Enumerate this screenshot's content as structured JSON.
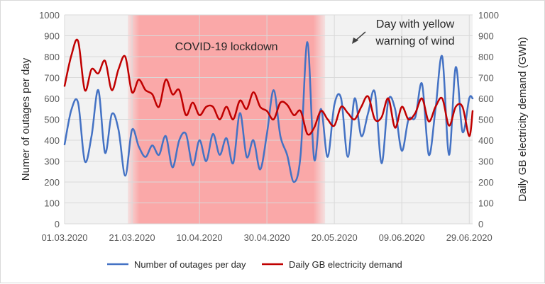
{
  "chart_data": {
    "type": "line",
    "x": [
      "01.03.2020",
      "03.03.2020",
      "05.03.2020",
      "07.03.2020",
      "09.03.2020",
      "11.03.2020",
      "13.03.2020",
      "15.03.2020",
      "17.03.2020",
      "19.03.2020",
      "21.03.2020",
      "23.03.2020",
      "25.03.2020",
      "27.03.2020",
      "29.03.2020",
      "31.03.2020",
      "02.04.2020",
      "04.04.2020",
      "06.04.2020",
      "08.04.2020",
      "10.04.2020",
      "12.04.2020",
      "14.04.2020",
      "16.04.2020",
      "18.04.2020",
      "20.04.2020",
      "22.04.2020",
      "24.04.2020",
      "26.04.2020",
      "28.04.2020",
      "30.04.2020",
      "02.05.2020",
      "04.05.2020",
      "06.05.2020",
      "08.05.2020",
      "10.05.2020",
      "12.05.2020",
      "14.05.2020",
      "16.05.2020",
      "18.05.2020",
      "20.05.2020",
      "22.05.2020",
      "24.05.2020",
      "26.05.2020",
      "28.05.2020",
      "30.05.2020",
      "01.06.2020",
      "03.06.2020",
      "05.06.2020",
      "07.06.2020",
      "09.06.2020",
      "11.06.2020",
      "13.06.2020",
      "15.06.2020",
      "17.06.2020",
      "19.06.2020",
      "21.06.2020",
      "23.06.2020",
      "25.06.2020",
      "27.06.2020",
      "29.06.2020",
      "30.06.2020"
    ],
    "series": [
      {
        "name": "Number of outages per day",
        "color": "#4472c4",
        "axis": "left",
        "values": [
          380,
          545,
          580,
          300,
          420,
          640,
          340,
          525,
          450,
          230,
          450,
          370,
          320,
          375,
          330,
          420,
          270,
          400,
          430,
          280,
          400,
          300,
          430,
          330,
          410,
          290,
          530,
          320,
          400,
          260,
          430,
          640,
          420,
          330,
          200,
          330,
          870,
          310,
          550,
          320,
          570,
          600,
          320,
          600,
          420,
          530,
          630,
          290,
          590,
          550,
          350,
          500,
          510,
          670,
          330,
          550,
          800,
          330,
          750,
          440,
          600,
          600
        ]
      },
      {
        "name": "Daily GB electricity demand",
        "color": "#c00000",
        "axis": "right",
        "values": [
          660,
          805,
          875,
          640,
          740,
          720,
          780,
          640,
          740,
          800,
          630,
          690,
          640,
          620,
          560,
          690,
          620,
          640,
          520,
          580,
          520,
          560,
          560,
          500,
          560,
          500,
          590,
          550,
          630,
          560,
          540,
          500,
          580,
          570,
          520,
          540,
          430,
          460,
          540,
          500,
          470,
          560,
          530,
          500,
          560,
          610,
          500,
          510,
          600,
          460,
          560,
          500,
          530,
          600,
          490,
          560,
          600,
          470,
          560,
          560,
          420,
          540
        ]
      }
    ],
    "y_left": {
      "label": "Numer of outages per day",
      "range": [
        0,
        1000
      ],
      "ticks": [
        "0",
        "100",
        "200",
        "300",
        "400",
        "500",
        "600",
        "700",
        "800",
        "900",
        "1000"
      ]
    },
    "y_right": {
      "label": "Daily GB electricity demand (GWh)",
      "range": [
        0,
        1000
      ],
      "ticks": [
        "0",
        "100",
        "200",
        "300",
        "400",
        "500",
        "600",
        "700",
        "800",
        "900",
        "1000"
      ]
    },
    "x_ticks": [
      "01.03.2020",
      "21.03.2020",
      "10.04.2020",
      "30.04.2020",
      "20.05.2020",
      "09.06.2020",
      "29.06.2020"
    ],
    "shaded_region": {
      "label": "COVID-19 lockdown",
      "from": "21.03.2020",
      "to": "16.05.2020",
      "color": "#ff8080"
    },
    "annotation": {
      "lines": [
        "Day with yellow",
        "warning of wind"
      ],
      "at": "26.05.2020"
    },
    "grid": true,
    "legend": "bottom"
  }
}
